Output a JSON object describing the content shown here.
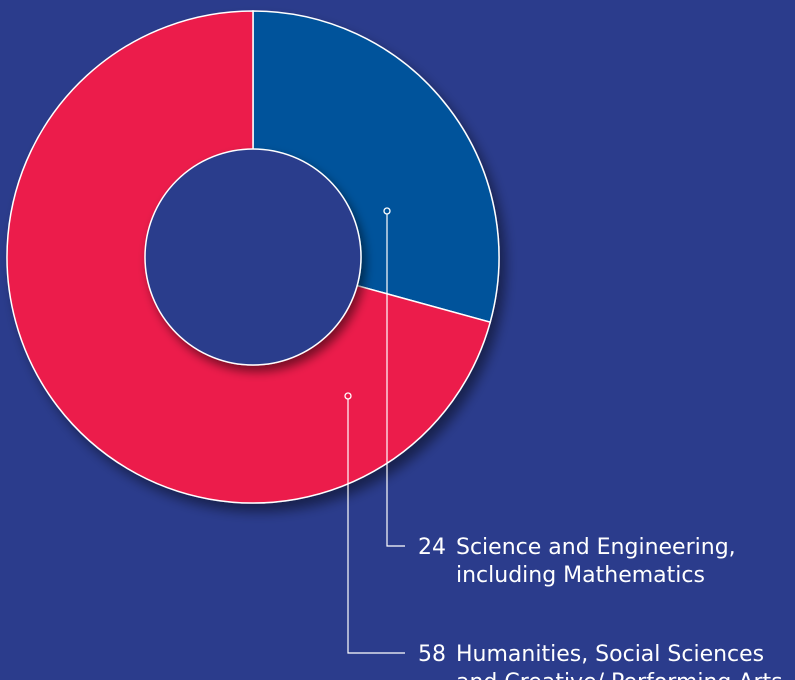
{
  "chart_data": {
    "type": "pie",
    "donut": true,
    "legend": "callouts-bottom-right",
    "series": [
      {
        "name": "Science and Engineering, including Mathematics",
        "value": 24,
        "label_number": "24",
        "label_lines": [
          "Science and Engineering,",
          "including Mathematics"
        ],
        "color": "#00539b"
      },
      {
        "name": "Humanities, Social Sciences and Creative/ Performing Arts",
        "value": 58,
        "label_number": "58",
        "label_lines": [
          "Humanities, Social Sciences",
          "and Creative/ Performing Arts"
        ],
        "color": "#ec1a4b"
      }
    ]
  },
  "colors": {
    "background": "#2b3c8c",
    "slice_border": "#ffffff",
    "leader_line": "#ffffff",
    "text": "#ffffff"
  }
}
